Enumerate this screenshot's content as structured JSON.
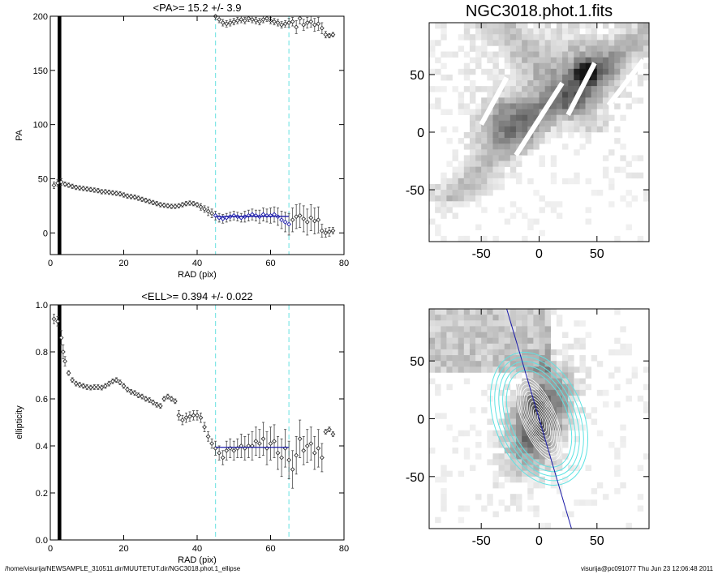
{
  "footer": {
    "path": "/home/visurija/NEWSAMPLE_310511.dir/MUUTETUT.dir/NGC3018.phot.1_ellipse",
    "stamp": "visurija@pc091077  Thu Jun 23 12:06:48 2011"
  },
  "colors": {
    "fit_line": "#1a1aa8",
    "range_marker": "#7fe6e6",
    "isophote": "#5fe3e3",
    "major_axis": "#1a1aa8",
    "axes": "#000000"
  },
  "chart_data": [
    {
      "id": "pa",
      "type": "scatter",
      "title": "<PA>=  15.2 +/-   3.9",
      "xlabel": "RAD (pix)",
      "ylabel": "PA",
      "xlim": [
        0,
        80
      ],
      "ylim": [
        -20,
        200
      ],
      "xticks": [
        0,
        20,
        40,
        60,
        80
      ],
      "yticks": [
        0,
        50,
        100,
        150,
        200
      ],
      "filled_band_x": [
        2,
        3
      ],
      "vlines": [
        45,
        65
      ],
      "fit": {
        "x": [
          45,
          65
        ],
        "y": 15.2
      },
      "fit_points_xrange": [
        45,
        65
      ],
      "series": [
        {
          "x": [
            1,
            2,
            3,
            4,
            5,
            6,
            7,
            8,
            9,
            10,
            11,
            12,
            13,
            14,
            15,
            16,
            17,
            18,
            19,
            20,
            21,
            22,
            23,
            24,
            25,
            26,
            27,
            28,
            29,
            30,
            31,
            32,
            33,
            34,
            35,
            36,
            37,
            38,
            39,
            40,
            41,
            42,
            43,
            44,
            45,
            46,
            47,
            48,
            49,
            50,
            51,
            52,
            53,
            54,
            55,
            56,
            57,
            58,
            59,
            60,
            61,
            62,
            63,
            64,
            65,
            66,
            67,
            68,
            69,
            70,
            71,
            72,
            73,
            74,
            75,
            76,
            77
          ],
          "y": [
            44,
            46,
            47,
            45,
            44,
            43,
            42,
            41.5,
            41,
            40.5,
            40,
            39.5,
            39,
            38,
            38,
            37.5,
            37,
            36.5,
            36,
            35,
            34,
            33.5,
            33,
            32,
            31,
            30,
            29,
            28,
            27,
            26,
            25.5,
            25,
            24.5,
            24.5,
            25,
            26,
            27,
            27.5,
            27,
            26,
            24,
            22,
            20,
            18,
            16,
            14,
            13,
            14,
            15,
            16,
            15,
            14,
            15,
            16,
            17,
            16,
            15,
            17,
            16,
            16,
            17,
            15,
            12,
            10,
            8,
            12,
            15,
            16,
            13,
            10,
            14,
            11,
            12,
            2,
            0,
            1,
            2
          ],
          "yerr": [
            3,
            3,
            3,
            2,
            2,
            2,
            2,
            2,
            2,
            2,
            2,
            2,
            2,
            2,
            2,
            2,
            2,
            2,
            2,
            2,
            2,
            2,
            2,
            2,
            2,
            2,
            2,
            2,
            2,
            2,
            2,
            2,
            2,
            2,
            2,
            2,
            2,
            2,
            2,
            2,
            3,
            3,
            4,
            4,
            4,
            4,
            4,
            4,
            4,
            4,
            4,
            4,
            5,
            5,
            5,
            5,
            6,
            6,
            6,
            7,
            7,
            8,
            8,
            9,
            10,
            11,
            11,
            11,
            12,
            12,
            12,
            12,
            12,
            6,
            4,
            4,
            3
          ]
        },
        {
          "x": [
            45,
            46,
            47,
            48,
            49,
            50,
            51,
            52,
            53,
            54,
            55,
            56,
            57,
            58,
            59,
            60,
            61,
            62,
            63,
            64,
            65,
            66,
            67,
            68,
            69,
            70,
            71,
            72,
            73,
            74,
            75,
            76,
            77
          ],
          "y": [
            200,
            197,
            194,
            193,
            194,
            195,
            196,
            197,
            196,
            198,
            197,
            196,
            195,
            197,
            198,
            196,
            195,
            194,
            192,
            193,
            194,
            195,
            190,
            198,
            192,
            194,
            195,
            192,
            193,
            189,
            183,
            182,
            183
          ],
          "yerr": [
            3,
            3,
            3,
            3,
            3,
            3,
            3,
            3,
            3,
            3,
            3,
            3,
            3,
            3,
            3,
            3,
            3,
            3,
            3,
            3,
            4,
            4,
            6,
            5,
            5,
            5,
            5,
            6,
            6,
            5,
            3,
            2,
            2
          ]
        }
      ]
    },
    {
      "id": "ell",
      "type": "scatter",
      "title": "<ELL>= 0.394 +/-  0.022",
      "xlabel": "RAD (pix)",
      "ylabel": "ellipticity",
      "xlim": [
        0,
        80
      ],
      "ylim": [
        0,
        1
      ],
      "xticks": [
        0,
        20,
        40,
        60,
        80
      ],
      "yticks": [
        0.0,
        0.2,
        0.4,
        0.6,
        0.8,
        1.0
      ],
      "filled_band_x": [
        2,
        3
      ],
      "vlines": [
        45,
        65
      ],
      "fit": {
        "x": [
          45,
          65
        ],
        "y": 0.394
      },
      "series": [
        {
          "x": [
            1,
            2,
            3,
            3.5,
            4,
            5,
            6,
            7,
            8,
            9,
            10,
            11,
            12,
            13,
            14,
            15,
            16,
            17,
            18,
            19,
            20,
            21,
            22,
            23,
            24,
            25,
            26,
            27,
            28,
            29,
            30,
            31,
            32,
            33,
            34,
            35,
            36,
            37,
            38,
            39,
            40,
            41,
            42,
            43,
            44,
            45,
            46,
            47,
            48,
            49,
            50,
            51,
            52,
            53,
            54,
            55,
            56,
            57,
            58,
            59,
            60,
            61,
            62,
            63,
            64,
            65,
            66,
            67,
            68,
            69,
            70,
            71,
            72,
            73,
            74,
            75,
            76,
            77
          ],
          "y": [
            0.94,
            0.93,
            0.86,
            0.8,
            0.76,
            0.71,
            0.68,
            0.665,
            0.66,
            0.655,
            0.65,
            0.648,
            0.65,
            0.65,
            0.648,
            0.655,
            0.665,
            0.675,
            0.68,
            0.67,
            0.655,
            0.64,
            0.63,
            0.625,
            0.615,
            0.61,
            0.6,
            0.595,
            0.585,
            0.575,
            0.57,
            0.6,
            0.61,
            0.6,
            0.59,
            0.53,
            0.51,
            0.52,
            0.525,
            0.53,
            0.53,
            0.52,
            0.48,
            0.44,
            0.41,
            0.39,
            0.37,
            0.35,
            0.38,
            0.39,
            0.38,
            0.39,
            0.4,
            0.39,
            0.4,
            0.4,
            0.42,
            0.41,
            0.43,
            0.39,
            0.41,
            0.42,
            0.37,
            0.35,
            0.39,
            0.34,
            0.3,
            0.36,
            0.43,
            0.38,
            0.4,
            0.41,
            0.37,
            0.39,
            0.35,
            0.46,
            0.47,
            0.45
          ],
          "yerr": [
            0.02,
            0.02,
            0.03,
            0.03,
            0.02,
            0.01,
            0.01,
            0.01,
            0.01,
            0.01,
            0.01,
            0.01,
            0.01,
            0.01,
            0.01,
            0.01,
            0.01,
            0.01,
            0.01,
            0.01,
            0.01,
            0.01,
            0.01,
            0.01,
            0.01,
            0.01,
            0.01,
            0.01,
            0.01,
            0.01,
            0.01,
            0.01,
            0.01,
            0.01,
            0.01,
            0.02,
            0.02,
            0.02,
            0.02,
            0.02,
            0.02,
            0.02,
            0.02,
            0.02,
            0.02,
            0.03,
            0.03,
            0.03,
            0.04,
            0.04,
            0.04,
            0.04,
            0.05,
            0.05,
            0.05,
            0.06,
            0.06,
            0.06,
            0.07,
            0.07,
            0.07,
            0.07,
            0.07,
            0.08,
            0.08,
            0.08,
            0.08,
            0.08,
            0.08,
            0.06,
            0.07,
            0.07,
            0.07,
            0.08,
            0.06,
            0.01,
            0.01,
            0.01
          ]
        }
      ]
    },
    {
      "id": "image",
      "type": "heatmap",
      "title": "NGC3018.phot.1.fits",
      "xlim": [
        -95,
        95
      ],
      "ylim": [
        -95,
        95
      ],
      "xticks": [
        -50,
        0,
        50
      ],
      "yticks": [
        -50,
        0,
        50
      ],
      "colormap": "inverted greyscale"
    },
    {
      "id": "isophotes",
      "type": "heatmap",
      "title": "",
      "xlim": [
        -95,
        95
      ],
      "ylim": [
        -95,
        95
      ],
      "xticks": [
        -50,
        0,
        50
      ],
      "yticks": [
        -50,
        0,
        50
      ],
      "colormap": "inverted greyscale",
      "overlay": "isophote ellipse fits and major axis"
    }
  ]
}
